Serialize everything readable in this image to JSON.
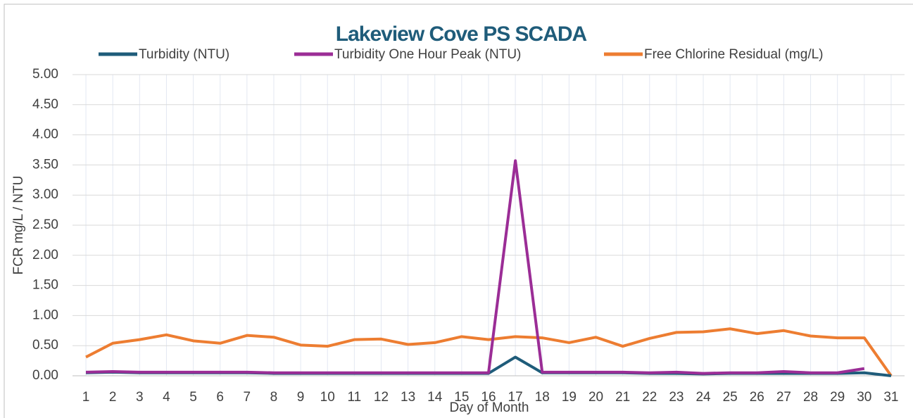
{
  "chart_data": {
    "type": "line",
    "title": "Lakeview Cove PS SCADA",
    "x_label": "Day of Month",
    "y_label": "FCR mg/L / NTU",
    "categories": [
      "1",
      "2",
      "3",
      "4",
      "5",
      "6",
      "7",
      "8",
      "9",
      "10",
      "11",
      "12",
      "13",
      "14",
      "15",
      "16",
      "17",
      "18",
      "19",
      "20",
      "21",
      "22",
      "23",
      "24",
      "25",
      "26",
      "27",
      "28",
      "29",
      "30",
      "31"
    ],
    "series": [
      {
        "name": "Turbidity (NTU)",
        "color": "#1f5c7a",
        "values": [
          0.05,
          0.06,
          0.05,
          0.05,
          0.05,
          0.05,
          0.05,
          0.04,
          0.04,
          0.04,
          0.04,
          0.04,
          0.04,
          0.04,
          0.04,
          0.04,
          0.31,
          0.05,
          0.05,
          0.05,
          0.05,
          0.04,
          0.04,
          0.03,
          0.04,
          0.04,
          0.04,
          0.04,
          0.04,
          0.05,
          0.0
        ]
      },
      {
        "name": "Turbidity One Hour Peak (NTU)",
        "color": "#9b2d96",
        "values": [
          0.06,
          0.07,
          0.06,
          0.06,
          0.06,
          0.06,
          0.06,
          0.05,
          0.05,
          0.05,
          0.05,
          0.05,
          0.05,
          0.05,
          0.05,
          0.05,
          3.57,
          0.06,
          0.06,
          0.06,
          0.06,
          0.05,
          0.06,
          0.04,
          0.05,
          0.05,
          0.07,
          0.05,
          0.05,
          0.12,
          null
        ]
      },
      {
        "name": "Free Chlorine Residual (mg/L)",
        "color": "#ed7d31",
        "values": [
          0.31,
          0.54,
          0.6,
          0.68,
          0.58,
          0.54,
          0.67,
          0.64,
          0.51,
          0.49,
          0.6,
          0.61,
          0.52,
          0.55,
          0.65,
          0.6,
          0.65,
          0.63,
          0.55,
          0.64,
          0.49,
          0.62,
          0.72,
          0.73,
          0.78,
          0.7,
          0.75,
          0.66,
          0.63,
          0.63,
          0.0
        ]
      }
    ],
    "ylim": [
      0,
      5
    ],
    "yticks": [
      {
        "value": 0,
        "label": "0.00"
      },
      {
        "value": 0.5,
        "label": "0.50"
      },
      {
        "value": 1,
        "label": "1.00"
      },
      {
        "value": 1.5,
        "label": "1.50"
      },
      {
        "value": 2,
        "label": "2.00"
      },
      {
        "value": 2.5,
        "label": "2.50"
      },
      {
        "value": 3,
        "label": "3.00"
      },
      {
        "value": 3.5,
        "label": "3.50"
      },
      {
        "value": 4,
        "label": "4.00"
      },
      {
        "value": 4.5,
        "label": "4.50"
      },
      {
        "value": 5,
        "label": "5.00"
      }
    ],
    "grid": true,
    "legend": "top"
  }
}
